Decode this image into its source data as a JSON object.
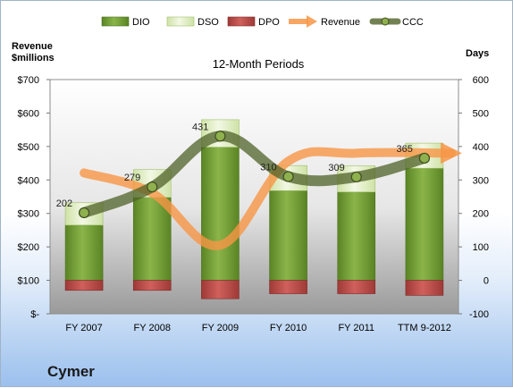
{
  "company": "Cymer",
  "chart_data": {
    "type": "bar",
    "title": "12-Month Periods",
    "ylabel_left": [
      "Revenue",
      "$millions"
    ],
    "ylabel_right": "Days",
    "categories": [
      "FY 2007",
      "FY 2008",
      "FY 2009",
      "FY 2010",
      "FY 2011",
      "TTM 9-2012"
    ],
    "left_axis": {
      "ticks": [
        "$-",
        "$100",
        "$200",
        "$300",
        "$400",
        "$500",
        "$600",
        "$700"
      ],
      "min": 0,
      "max": 700
    },
    "right_axis": {
      "ticks": [
        "-100",
        "0",
        "100",
        "200",
        "300",
        "400",
        "500",
        "600"
      ],
      "min": -100,
      "max": 600
    },
    "grid": false,
    "legend_position": "top",
    "series": [
      {
        "name": "DIO",
        "kind": "bar",
        "axis": "right",
        "color": "#6e9a2f",
        "values": [
          165,
          248,
          398,
          268,
          264,
          335
        ]
      },
      {
        "name": "DSO",
        "kind": "bar",
        "axis": "right",
        "color": "#e3efcb",
        "values": [
          67,
          83,
          82,
          75,
          78,
          75
        ]
      },
      {
        "name": "DPO",
        "kind": "bar",
        "axis": "right",
        "color": "#c0504d",
        "values": [
          -30,
          -30,
          -55,
          -40,
          -40,
          -45
        ]
      },
      {
        "name": "Revenue",
        "kind": "line",
        "axis": "left",
        "color": "#f79646",
        "values": [
          421,
          361,
          205,
          456,
          480,
          480
        ]
      },
      {
        "name": "CCC",
        "kind": "line",
        "axis": "right",
        "color": "#4f6228",
        "values": [
          202,
          279,
          431,
          310,
          309,
          365
        ],
        "labels": [
          "202",
          "279",
          "431",
          "310",
          "309",
          "365"
        ]
      }
    ]
  }
}
